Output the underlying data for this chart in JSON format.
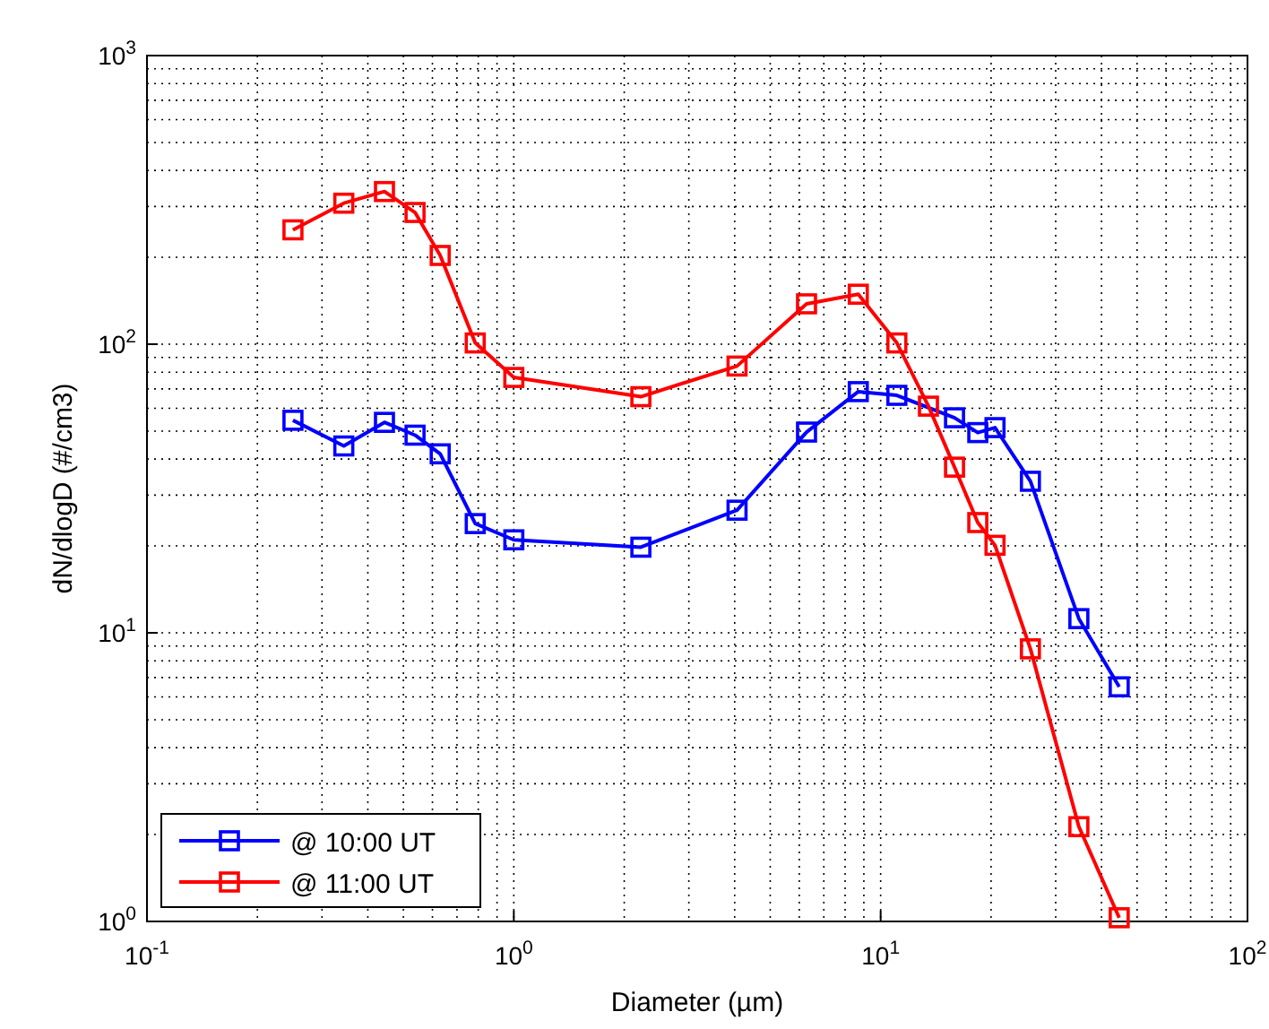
{
  "chart_data": {
    "type": "line",
    "xlabel": "Diameter (µm)",
    "ylabel": "dN/dlogD (#/cm3)",
    "log": "xy",
    "grid": true,
    "legend": "bottom left",
    "marker": "square",
    "line_style": "solid",
    "xlim": [
      0.1,
      100
    ],
    "xticks": [
      {
        "value": 0.1,
        "label": "10$^{-1}$"
      },
      {
        "value": 1,
        "label": "10$^{0}$"
      },
      {
        "value": 10,
        "label": "10$^{1}$"
      },
      {
        "value": 100,
        "label": "10$^{2}$"
      }
    ],
    "ylim": [
      1,
      1000
    ],
    "yticks": [
      {
        "value": 1,
        "label": "10$^{0}$"
      },
      {
        "value": 10,
        "label": "10$^{1}$"
      },
      {
        "value": 100,
        "label": "10$^{2}$"
      },
      {
        "value": 1000,
        "label": "10$^{3}$"
      }
    ],
    "series": [
      {
        "name": "@ 10:00 UT",
        "color": "#0000ff",
        "x": [
          0.25,
          0.344,
          0.444,
          0.538,
          0.63,
          0.785,
          1.0,
          2.22,
          4.06,
          6.28,
          8.69,
          11.07,
          15.9,
          18.4,
          20.5,
          25.6,
          34.7,
          44.7
        ],
        "values": [
          54.5,
          44.4,
          53.6,
          48.4,
          41.7,
          23.9,
          21.0,
          19.8,
          26.6,
          49.6,
          68.5,
          66.5,
          55.6,
          49.4,
          51.4,
          33.5,
          11.2,
          6.5
        ]
      },
      {
        "name": "@ 11:00 UT",
        "color": "#ff0000",
        "x": [
          0.25,
          0.344,
          0.444,
          0.538,
          0.63,
          0.785,
          1.0,
          2.22,
          4.06,
          6.28,
          8.69,
          11.07,
          13.5,
          15.9,
          18.4,
          20.5,
          25.6,
          34.7,
          44.7
        ],
        "values": [
          249,
          308,
          338,
          286,
          203,
          101,
          76.7,
          65.8,
          84,
          138,
          149,
          101,
          61,
          37.5,
          24.1,
          20.1,
          8.8,
          2.13,
          1.03
        ]
      }
    ]
  }
}
